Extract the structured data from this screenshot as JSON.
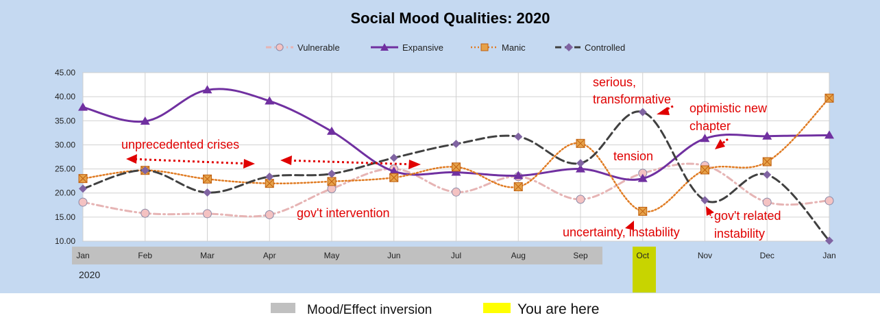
{
  "chart_data": {
    "type": "line",
    "title": "Social Mood Qualities:  2020",
    "categories": [
      "Jan",
      "Feb",
      "Mar",
      "Apr",
      "May",
      "Jun",
      "Jul",
      "Aug",
      "Sep",
      "Oct",
      "Nov",
      "Dec",
      "Jan"
    ],
    "year_label": "2020",
    "ylim": [
      10,
      45
    ],
    "yticks": [
      "10.00",
      "15.00",
      "20.00",
      "25.00",
      "30.00",
      "35.00",
      "40.00",
      "45.00"
    ],
    "grid": true,
    "legend_position": "top",
    "series": [
      {
        "name": "Vulnerable",
        "color": "#e6b4b4",
        "marker": "circle",
        "style": "dash-dot",
        "values": [
          18.1,
          15.8,
          15.7,
          15.5,
          20.9,
          25.0,
          20.2,
          23.4,
          18.7,
          24.1,
          25.7,
          18.1,
          18.4
        ]
      },
      {
        "name": "Expansive",
        "color": "#7030a0",
        "marker": "triangle",
        "style": "solid",
        "values": [
          37.8,
          34.9,
          41.4,
          39.1,
          32.8,
          24.5,
          24.3,
          23.6,
          25.0,
          23.0,
          31.3,
          31.8,
          32.0
        ]
      },
      {
        "name": "Manic",
        "color": "#e07b22",
        "marker": "square",
        "style": "dotted",
        "values": [
          23.0,
          24.7,
          22.9,
          22.0,
          22.4,
          23.2,
          25.4,
          21.3,
          30.3,
          16.2,
          24.8,
          26.5,
          39.7
        ]
      },
      {
        "name": "Controlled",
        "color": "#404040",
        "marker": "diamond",
        "style": "dashed",
        "values": [
          20.9,
          24.7,
          20.1,
          23.4,
          24.0,
          27.3,
          30.2,
          31.7,
          26.2,
          36.8,
          18.5,
          23.8,
          10.1
        ]
      }
    ],
    "annotations": [
      {
        "text": "unprecedented crises"
      },
      {
        "text": "gov't intervention"
      },
      {
        "text": "serious,"
      },
      {
        "text": "transformative"
      },
      {
        "text": "optimistic new"
      },
      {
        "text": "chapter"
      },
      {
        "text": "tension"
      },
      {
        "text": "uncertainty, instability"
      },
      {
        "text": "gov't related"
      },
      {
        "text": "instability"
      }
    ]
  },
  "bottom_legend": {
    "inversion_label": "Mood/Effect inversion",
    "inversion_color": "#c0c0c0",
    "here_label": "You are here",
    "here_color": "#ffff00",
    "marker_color": "#c8d400"
  },
  "colors": {
    "background": "#c5d9f1",
    "plot_area": "#ffffff",
    "annotation": "#e00000"
  }
}
